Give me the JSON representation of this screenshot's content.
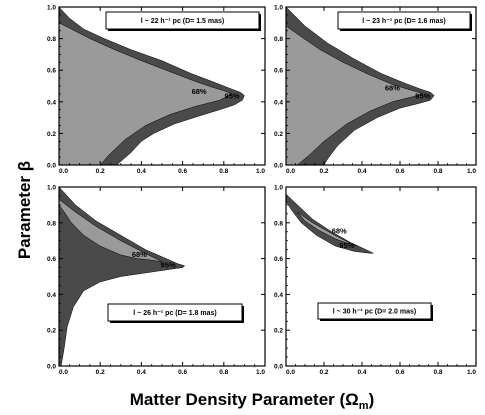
{
  "figure": {
    "xlabel_main": "Matter Density Parameter (Ω",
    "xlabel_sub": "m",
    "xlabel_close": ")",
    "ylabel_main": "Parameter β"
  },
  "colors": {
    "region_95": "#4a4a4a",
    "region_68": "#9a9a9a",
    "background": "#ffffff",
    "axes": "#000000"
  },
  "chart_data": [
    {
      "type": "area",
      "panel": "top-left",
      "title": "l ~ 22 h⁻¹ pc   (D= 1.5 mas)",
      "xlim": [
        0.0,
        1.0
      ],
      "ylim": [
        0.0,
        1.0
      ],
      "xticks": [
        "0.0",
        "0.2",
        "0.4",
        "0.6",
        "0.8",
        "1.0"
      ],
      "yticks": [
        "0.0",
        "0.2",
        "0.4",
        "0.6",
        "0.8",
        "1.0"
      ],
      "labels": [
        {
          "text": "68%",
          "x": 0.68,
          "y": 0.45
        },
        {
          "text": "95%",
          "x": 0.84,
          "y": 0.42
        }
      ],
      "series": [
        {
          "name": "95%",
          "x": [
            0.0,
            0.05,
            0.12,
            0.22,
            0.35,
            0.5,
            0.64,
            0.76,
            0.84,
            0.88,
            0.9,
            0.89,
            0.85,
            0.78,
            0.68,
            0.56,
            0.46,
            0.4,
            0.35,
            0.28,
            0.21,
            0.18,
            0.0
          ],
          "y": [
            1.0,
            0.93,
            0.86,
            0.8,
            0.73,
            0.66,
            0.58,
            0.52,
            0.48,
            0.46,
            0.44,
            0.41,
            0.38,
            0.35,
            0.31,
            0.26,
            0.2,
            0.15,
            0.08,
            0.0,
            0.0,
            0.0,
            0.0
          ]
        },
        {
          "name": "68%",
          "x": [
            0.0,
            0.06,
            0.15,
            0.27,
            0.4,
            0.54,
            0.66,
            0.75,
            0.8,
            0.84,
            0.78,
            0.66,
            0.54,
            0.42,
            0.32,
            0.24,
            0.2,
            0.0
          ],
          "y": [
            0.9,
            0.86,
            0.8,
            0.73,
            0.66,
            0.59,
            0.53,
            0.49,
            0.47,
            0.45,
            0.41,
            0.37,
            0.32,
            0.25,
            0.16,
            0.06,
            0.0,
            0.0
          ]
        }
      ]
    },
    {
      "type": "area",
      "panel": "top-right",
      "title": "l ~ 23 h⁻¹ pc   (D= 1.6 mas)",
      "xlim": [
        0.0,
        1.0
      ],
      "ylim": [
        0.0,
        1.0
      ],
      "xticks": [
        "0.0",
        "0.2",
        "0.4",
        "0.6",
        "0.8",
        "1.0"
      ],
      "yticks": [
        "0.0",
        "0.2",
        "0.4",
        "0.6",
        "0.8",
        "1.0"
      ],
      "labels": [
        {
          "text": "68%",
          "x": 0.56,
          "y": 0.47
        },
        {
          "text": "95%",
          "x": 0.72,
          "y": 0.42
        }
      ],
      "series": [
        {
          "name": "95%",
          "x": [
            0.0,
            0.1,
            0.22,
            0.36,
            0.5,
            0.62,
            0.71,
            0.76,
            0.78,
            0.76,
            0.7,
            0.6,
            0.48,
            0.36,
            0.27,
            0.22,
            0.2,
            0.14,
            0.06,
            0.0
          ],
          "y": [
            1.0,
            0.88,
            0.77,
            0.67,
            0.58,
            0.52,
            0.48,
            0.46,
            0.44,
            0.41,
            0.39,
            0.36,
            0.3,
            0.22,
            0.12,
            0.04,
            0.0,
            0.0,
            0.0,
            0.0
          ]
        },
        {
          "name": "68%",
          "x": [
            0.0,
            0.07,
            0.18,
            0.3,
            0.44,
            0.56,
            0.64,
            0.7,
            0.72,
            0.66,
            0.56,
            0.44,
            0.32,
            0.2,
            0.12,
            0.07,
            0.06,
            0.0
          ],
          "y": [
            0.88,
            0.82,
            0.73,
            0.65,
            0.57,
            0.51,
            0.48,
            0.46,
            0.45,
            0.43,
            0.4,
            0.34,
            0.26,
            0.15,
            0.06,
            0.01,
            0.0,
            0.0
          ]
        }
      ]
    },
    {
      "type": "area",
      "panel": "bottom-left",
      "title": "l ~ 26 h⁻¹ pc   (D= 1.8 mas)",
      "xlim": [
        0.0,
        1.0
      ],
      "ylim": [
        0.0,
        1.0
      ],
      "xticks": [
        "0.0",
        "0.2",
        "0.4",
        "0.6",
        "0.8",
        "1.0"
      ],
      "yticks": [
        "0.0",
        "0.2",
        "0.4",
        "0.6",
        "0.8",
        "1.0"
      ],
      "labels": [
        {
          "text": "68%",
          "x": 0.39,
          "y": 0.61
        },
        {
          "text": "95%",
          "x": 0.53,
          "y": 0.55
        }
      ],
      "series": [
        {
          "name": "95%",
          "x": [
            0.0,
            0.08,
            0.18,
            0.3,
            0.42,
            0.52,
            0.58,
            0.61,
            0.6,
            0.54,
            0.42,
            0.3,
            0.2,
            0.12,
            0.07,
            0.04,
            0.025,
            0.01,
            0.0
          ],
          "y": [
            1.0,
            0.9,
            0.81,
            0.73,
            0.65,
            0.6,
            0.57,
            0.56,
            0.55,
            0.54,
            0.52,
            0.5,
            0.47,
            0.42,
            0.33,
            0.22,
            0.1,
            0.0,
            0.0
          ]
        },
        {
          "name": "68%",
          "x": [
            0.0,
            0.08,
            0.18,
            0.3,
            0.4,
            0.47,
            0.5,
            0.46,
            0.38,
            0.3,
            0.2,
            0.12,
            0.06,
            0.02,
            0.0
          ],
          "y": [
            0.93,
            0.86,
            0.78,
            0.7,
            0.64,
            0.6,
            0.58,
            0.59,
            0.6,
            0.62,
            0.67,
            0.73,
            0.8,
            0.87,
            0.9
          ]
        }
      ]
    },
    {
      "type": "area",
      "panel": "bottom-right",
      "title": "l ~ 30 h⁻¹ pc   (D= 2.0 mas)",
      "xlim": [
        0.0,
        1.0
      ],
      "ylim": [
        0.0,
        1.0
      ],
      "xticks": [
        "0.0",
        "0.2",
        "0.4",
        "0.6",
        "0.8",
        "1.0"
      ],
      "yticks": [
        "0.0",
        "0.2",
        "0.4",
        "0.6",
        "0.8",
        "1.0"
      ],
      "labels": [
        {
          "text": "68%",
          "x": 0.28,
          "y": 0.74
        },
        {
          "text": "95%",
          "x": 0.32,
          "y": 0.66
        }
      ],
      "series": [
        {
          "name": "95%",
          "x": [
            0.0,
            0.06,
            0.14,
            0.24,
            0.34,
            0.42,
            0.46,
            0.44,
            0.36,
            0.26,
            0.16,
            0.08,
            0.03,
            0.0
          ],
          "y": [
            0.96,
            0.9,
            0.82,
            0.75,
            0.69,
            0.65,
            0.63,
            0.63,
            0.64,
            0.67,
            0.73,
            0.8,
            0.87,
            0.92
          ]
        },
        {
          "name": "68%",
          "x": [
            0.06,
            0.14,
            0.24,
            0.33,
            0.38,
            0.34,
            0.26,
            0.17,
            0.1,
            0.06
          ],
          "y": [
            0.86,
            0.8,
            0.74,
            0.69,
            0.67,
            0.68,
            0.71,
            0.76,
            0.81,
            0.86
          ]
        }
      ]
    }
  ]
}
